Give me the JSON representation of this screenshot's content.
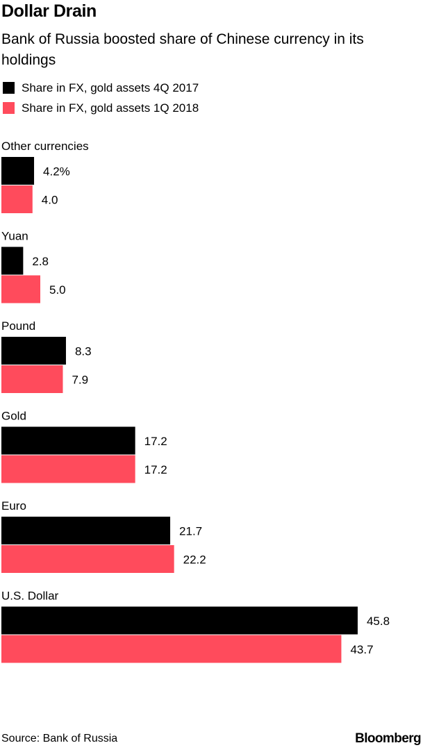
{
  "chart_data": {
    "type": "bar",
    "orientation": "horizontal",
    "title": "Dollar Drain",
    "subtitle": "Bank of Russia boosted share of Chinese currency in its holdings",
    "categories": [
      "Other currencies",
      "Yuan",
      "Pound",
      "Gold",
      "Euro",
      "U.S. Dollar"
    ],
    "series": [
      {
        "name": "Share in FX, gold assets 4Q 2017",
        "color": "#000000",
        "values": [
          4.2,
          2.8,
          8.3,
          17.2,
          21.7,
          45.8
        ],
        "labels": [
          "4.2%",
          "2.8",
          "8.3",
          "17.2",
          "21.7",
          "45.8"
        ]
      },
      {
        "name": "Share in FX, gold assets 1Q 2018",
        "color": "#ff4b5c",
        "values": [
          4.0,
          5.0,
          7.9,
          17.2,
          22.2,
          43.7
        ],
        "labels": [
          "4.0",
          "5.0",
          "7.9",
          "17.2",
          "22.2",
          "43.7"
        ]
      }
    ],
    "legend_position": "top-left",
    "grid": false
  },
  "footer": {
    "source": "Source: Bank of Russia",
    "brand": "Bloomberg"
  }
}
